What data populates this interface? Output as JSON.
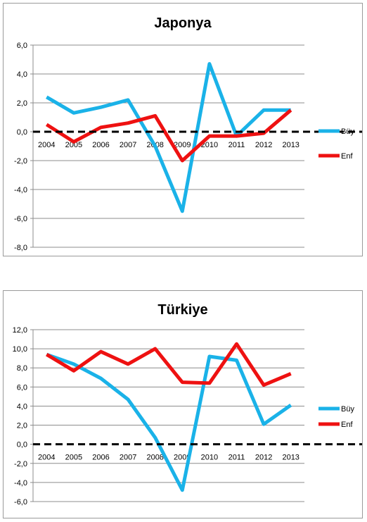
{
  "chart_data": [
    {
      "type": "line",
      "title": "Japonya",
      "xlabel": "",
      "ylabel": "",
      "categories": [
        "2004",
        "2005",
        "2006",
        "2007",
        "2008",
        "2009",
        "2010",
        "2011",
        "2012",
        "2013"
      ],
      "ylim": [
        -8,
        6
      ],
      "yticks": [
        6,
        4,
        2,
        0,
        -2,
        -4,
        -6,
        -8
      ],
      "ytick_labels": [
        "6,0",
        "4,0",
        "2,0",
        "0,0",
        "-2,0",
        "-4,0",
        "-6,0",
        "-8,0"
      ],
      "grid": true,
      "legend_position": "right",
      "zero_line": "dashed",
      "series": [
        {
          "name": "Büy",
          "color": "#1ab2e8",
          "values": [
            2.4,
            1.3,
            1.7,
            2.2,
            -1.0,
            -5.5,
            4.7,
            -0.3,
            1.5,
            1.5
          ]
        },
        {
          "name": "Enf",
          "color": "#ee1111",
          "values": [
            0.5,
            -0.7,
            0.3,
            0.6,
            1.1,
            -2.0,
            -0.3,
            -0.3,
            -0.1,
            1.5
          ]
        }
      ]
    },
    {
      "type": "line",
      "title": "Türkiye",
      "xlabel": "",
      "ylabel": "",
      "categories": [
        "2004",
        "2005",
        "2006",
        "2007",
        "2008",
        "2009",
        "2010",
        "2011",
        "2012",
        "2013"
      ],
      "ylim": [
        -6,
        12
      ],
      "yticks": [
        12,
        10,
        8,
        6,
        4,
        2,
        0,
        -2,
        -4,
        -6
      ],
      "ytick_labels": [
        "12,0",
        "10,0",
        "8,0",
        "6,0",
        "4,0",
        "2,0",
        "0,0",
        "-2,0",
        "-4,0",
        "-6,0"
      ],
      "grid": true,
      "legend_position": "right",
      "zero_line": "dashed",
      "series": [
        {
          "name": "Büy",
          "color": "#1ab2e8",
          "values": [
            9.4,
            8.4,
            6.9,
            4.7,
            0.7,
            -4.8,
            9.2,
            8.8,
            2.1,
            4.1
          ]
        },
        {
          "name": "Enf",
          "color": "#ee1111",
          "values": [
            9.4,
            7.7,
            9.7,
            8.4,
            10.0,
            6.5,
            6.4,
            10.5,
            6.2,
            7.4
          ]
        }
      ]
    }
  ]
}
